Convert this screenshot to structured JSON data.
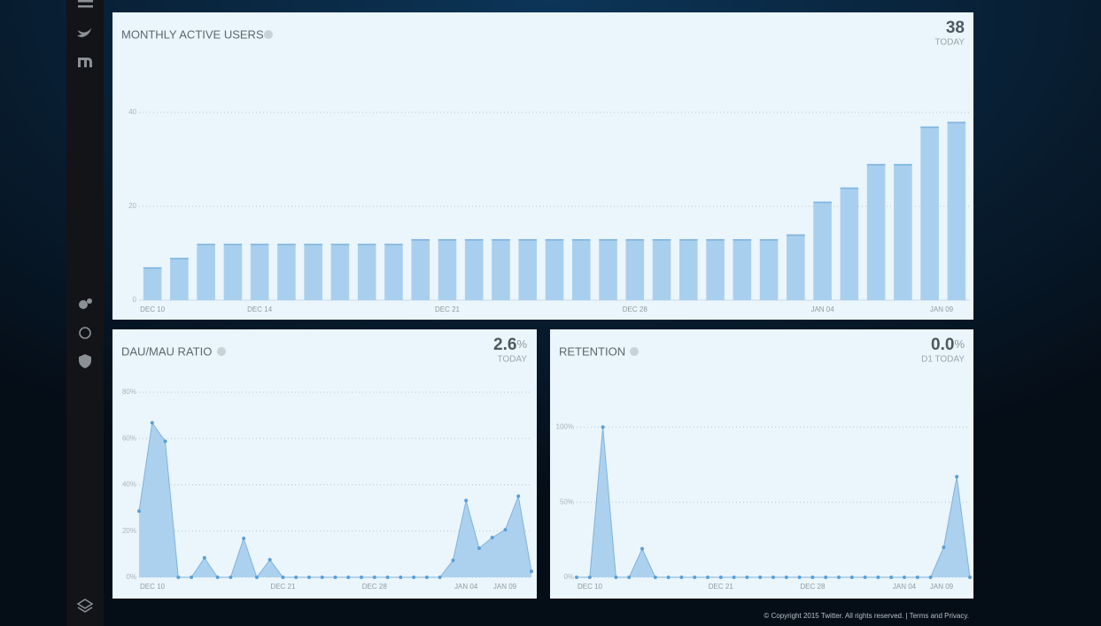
{
  "footer": "© Copyright 2015 Twitter. All rights reserved. | Terms and Privacy.",
  "chart_data": [
    {
      "type": "bar",
      "title": "MONTHLY ACTIVE USERS",
      "headline": "38",
      "headline_label": "TODAY",
      "color": "#a9cfee",
      "grid": true,
      "categories": [
        "DEC 10",
        null,
        null,
        null,
        "DEC 14",
        null,
        null,
        null,
        null,
        null,
        null,
        "DEC 21",
        null,
        null,
        null,
        null,
        null,
        null,
        "DEC 28",
        null,
        null,
        null,
        null,
        null,
        null,
        "JAN 04",
        null,
        null,
        null,
        null,
        "JAN 09"
      ],
      "values": [
        7,
        9,
        12,
        12,
        12,
        12,
        12,
        12,
        12,
        12,
        13,
        13,
        13,
        13,
        13,
        13,
        13,
        13,
        13,
        13,
        13,
        13,
        13,
        13,
        14,
        21,
        24,
        29,
        29,
        37,
        38
      ],
      "ylim": [
        0,
        50
      ],
      "yticks": [
        0,
        20,
        40
      ]
    },
    {
      "type": "area",
      "title": "DAU/MAU RATIO",
      "headline": "2.6",
      "headline_unit": "%",
      "headline_label": "TODAY",
      "color": "#a9cfee",
      "grid": true,
      "categories": [
        "DEC 10",
        null,
        null,
        null,
        null,
        null,
        null,
        null,
        null,
        null,
        null,
        "DEC 21",
        null,
        null,
        null,
        null,
        null,
        null,
        "DEC 28",
        null,
        null,
        null,
        null,
        null,
        null,
        "JAN 04",
        null,
        null,
        null,
        null,
        "JAN 09"
      ],
      "values": [
        28.6,
        66.8,
        58.8,
        0,
        0,
        8.4,
        0,
        0,
        16.8,
        0,
        7.6,
        0,
        0,
        0,
        0,
        0,
        0,
        0,
        0,
        0,
        0,
        0,
        0,
        0,
        7.3,
        33.2,
        12.6,
        17.2,
        20.6,
        35.1,
        2.6
      ],
      "ylim": [
        0,
        85
      ],
      "yticks": [
        {
          "value": 0,
          "label": "0%"
        },
        {
          "value": 20,
          "label": "20%"
        },
        {
          "value": 40,
          "label": "40%"
        },
        {
          "value": 60,
          "label": "60%"
        },
        {
          "value": 80,
          "label": "80%"
        }
      ]
    },
    {
      "type": "area",
      "title": "RETENTION",
      "headline": "0.0",
      "headline_unit": "%",
      "headline_label": "D1 TODAY",
      "color": "#a9cfee",
      "grid": true,
      "categories": [
        "DEC 10",
        null,
        null,
        null,
        null,
        null,
        null,
        null,
        null,
        null,
        null,
        "DEC 21",
        null,
        null,
        null,
        null,
        null,
        null,
        "DEC 28",
        null,
        null,
        null,
        null,
        null,
        null,
        "JAN 04",
        null,
        null,
        null,
        null,
        "JAN 09"
      ],
      "values": [
        0,
        0,
        100,
        0,
        0,
        19,
        0,
        0,
        0,
        0,
        0,
        0,
        0,
        0,
        0,
        0,
        0,
        0,
        0,
        0,
        0,
        0,
        0,
        0,
        0,
        0,
        0,
        0,
        20,
        67,
        0
      ],
      "ylim": [
        0,
        125
      ],
      "yticks": [
        {
          "value": 0,
          "label": "0%"
        },
        {
          "value": 50,
          "label": "50%"
        },
        {
          "value": 100,
          "label": "100%"
        }
      ]
    }
  ]
}
